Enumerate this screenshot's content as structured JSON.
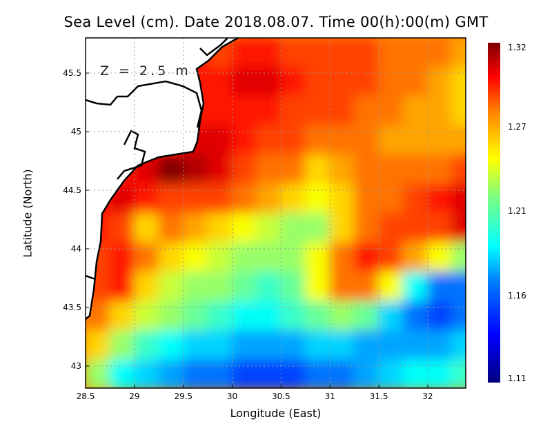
{
  "chart_data": {
    "type": "heatmap",
    "title": "Sea Level (cm). Date 2018.08.07. Time 00(h):00(m) GMT",
    "xlabel": "Longitude (East)",
    "ylabel": "Latitude (North)",
    "annotation": "Z = 2.5 m",
    "xlim": [
      28.5,
      32.38
    ],
    "ylim": [
      42.8,
      45.8
    ],
    "xticks": [
      "28.5",
      "29",
      "29.5",
      "30",
      "30.5",
      "31",
      "31.5",
      "32"
    ],
    "yticks": [
      "43",
      "43.5",
      "44",
      "44.5",
      "45",
      "45.5"
    ],
    "grid": true,
    "colorbar": {
      "ticks": [
        "1.32",
        "1.27",
        "1.21",
        "1.16",
        "1.11"
      ],
      "range": [
        1.11,
        1.32
      ],
      "colormap": "jet",
      "placement": "right"
    },
    "lon": [
      28.625,
      28.875,
      29.125,
      29.375,
      29.625,
      29.875,
      30.125,
      30.375,
      30.625,
      30.875,
      31.125,
      31.375,
      31.625,
      31.875,
      32.125,
      32.375
    ],
    "lat": [
      45.675,
      45.425,
      45.175,
      44.925,
      44.675,
      44.425,
      44.175,
      43.925,
      43.675,
      43.425,
      43.175,
      42.925
    ],
    "values": [
      [
        null,
        null,
        null,
        null,
        null,
        1.28,
        1.29,
        1.29,
        1.28,
        1.28,
        1.28,
        1.28,
        1.27,
        1.27,
        1.27,
        1.26
      ],
      [
        null,
        null,
        null,
        null,
        null,
        1.29,
        1.3,
        1.3,
        1.29,
        1.28,
        1.28,
        1.28,
        1.27,
        1.27,
        1.26,
        1.25
      ],
      [
        null,
        null,
        null,
        null,
        null,
        1.29,
        1.29,
        1.29,
        1.28,
        1.28,
        1.28,
        1.27,
        1.27,
        1.26,
        1.26,
        1.25
      ],
      [
        null,
        null,
        null,
        null,
        1.3,
        1.3,
        1.29,
        1.28,
        1.28,
        1.27,
        1.27,
        1.27,
        1.26,
        1.26,
        1.26,
        1.26
      ],
      [
        null,
        1.29,
        1.3,
        1.32,
        1.31,
        1.3,
        1.28,
        1.27,
        1.27,
        1.25,
        1.26,
        1.27,
        1.27,
        1.27,
        1.27,
        1.28
      ],
      [
        1.29,
        1.3,
        1.29,
        1.28,
        1.28,
        1.28,
        1.27,
        1.26,
        1.25,
        1.24,
        1.25,
        1.27,
        1.27,
        1.28,
        1.29,
        1.3
      ],
      [
        1.29,
        1.28,
        1.25,
        1.27,
        1.26,
        1.25,
        1.24,
        1.23,
        1.22,
        1.22,
        1.25,
        1.27,
        1.28,
        1.28,
        1.28,
        1.3
      ],
      [
        1.28,
        1.29,
        1.27,
        1.25,
        1.24,
        1.23,
        1.22,
        1.22,
        1.22,
        1.24,
        1.27,
        1.29,
        1.28,
        1.26,
        1.24,
        1.22
      ],
      [
        1.28,
        1.29,
        1.25,
        1.23,
        1.22,
        1.22,
        1.21,
        1.2,
        1.21,
        1.24,
        1.27,
        1.27,
        1.24,
        1.19,
        1.16,
        1.16
      ],
      [
        1.27,
        1.25,
        1.23,
        1.22,
        1.21,
        1.2,
        1.19,
        1.19,
        1.2,
        1.21,
        1.22,
        1.21,
        1.18,
        1.16,
        1.15,
        1.16
      ],
      [
        1.25,
        1.22,
        1.2,
        1.19,
        1.18,
        1.18,
        1.17,
        1.17,
        1.17,
        1.18,
        1.18,
        1.17,
        1.17,
        1.17,
        1.17,
        1.18
      ],
      [
        1.22,
        1.19,
        1.18,
        1.17,
        1.16,
        1.16,
        1.15,
        1.15,
        1.15,
        1.16,
        1.16,
        1.17,
        1.18,
        1.19,
        1.19,
        1.2
      ]
    ]
  }
}
